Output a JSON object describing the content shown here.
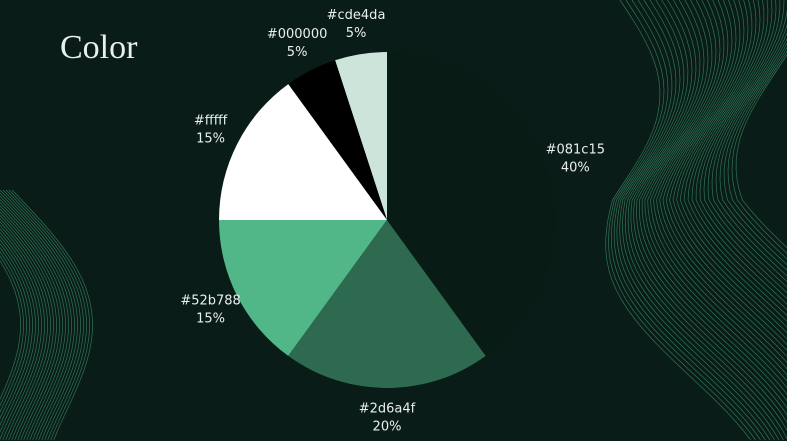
{
  "chart_data": {
    "type": "pie",
    "title": "Color",
    "categories": [
      "#cde4da",
      "#000000",
      "#fffff",
      "#52b788",
      "#2d6a4f",
      "#081c15"
    ],
    "values": [
      5,
      5,
      15,
      15,
      20,
      40
    ],
    "value_labels": [
      "5%",
      "5%",
      "15%",
      "15%",
      "20%",
      "40%"
    ],
    "colors": [
      "#cde4da",
      "#000000",
      "#ffffff",
      "#52b788",
      "#2d6a4f",
      "#081c15"
    ]
  }
}
